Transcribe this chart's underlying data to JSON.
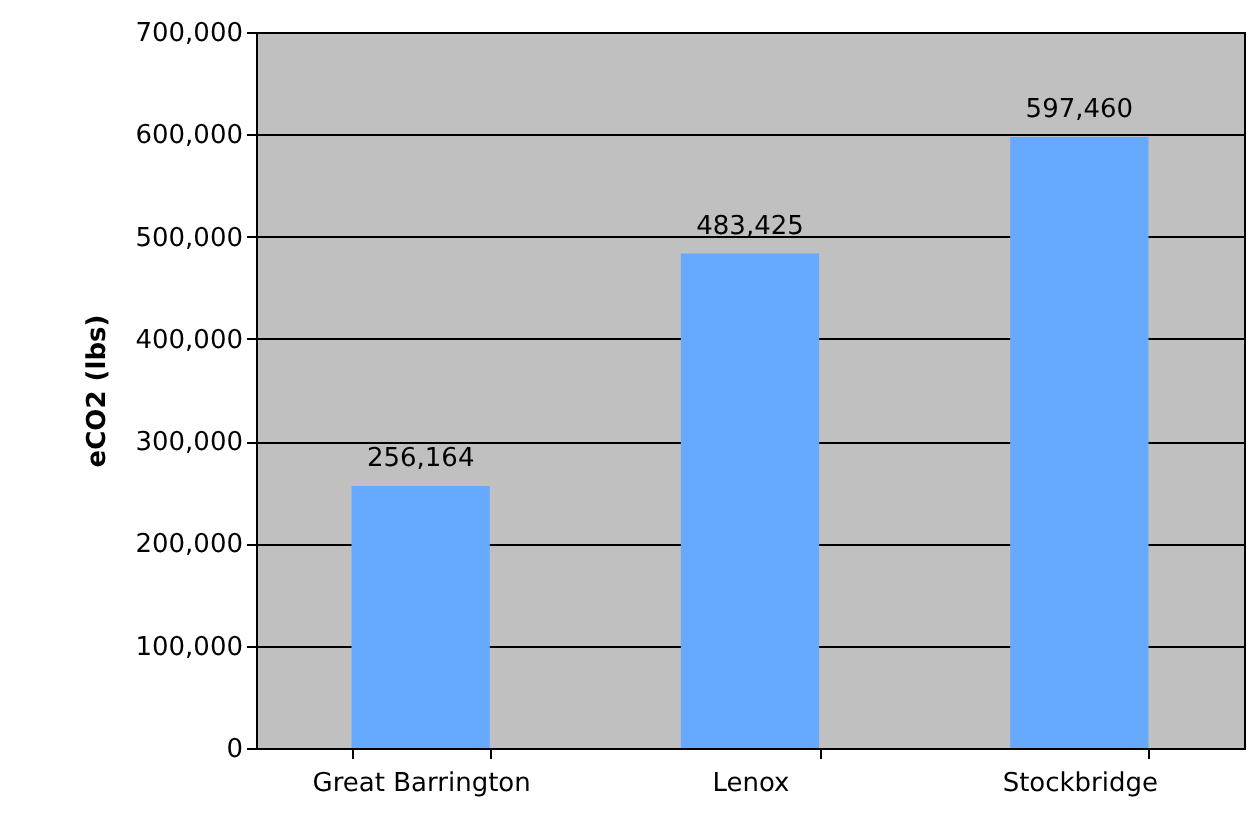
{
  "chart_data": {
    "type": "bar",
    "ylabel": "eCO2 (lbs)",
    "categories": [
      "Great Barrington",
      "Lenox",
      "Stockbridge"
    ],
    "values": [
      256164,
      483425,
      597460
    ],
    "value_labels": [
      "256,164",
      "483,425",
      "597,460"
    ],
    "color": "#66aaff",
    "ylim": [
      0,
      700000
    ],
    "yticks": [
      0,
      {
        "value": 100000,
        "label": "100,000"
      },
      {
        "value": 200000,
        "label": "200,000"
      },
      {
        "value": 300000,
        "label": "300,000"
      },
      {
        "value": 400000,
        "label": "400,000"
      },
      {
        "value": 500000,
        "label": "500,000"
      },
      {
        "value": 600000,
        "label": "600,000"
      },
      {
        "value": 700000,
        "label": "700,000"
      }
    ],
    "grid": "y"
  }
}
